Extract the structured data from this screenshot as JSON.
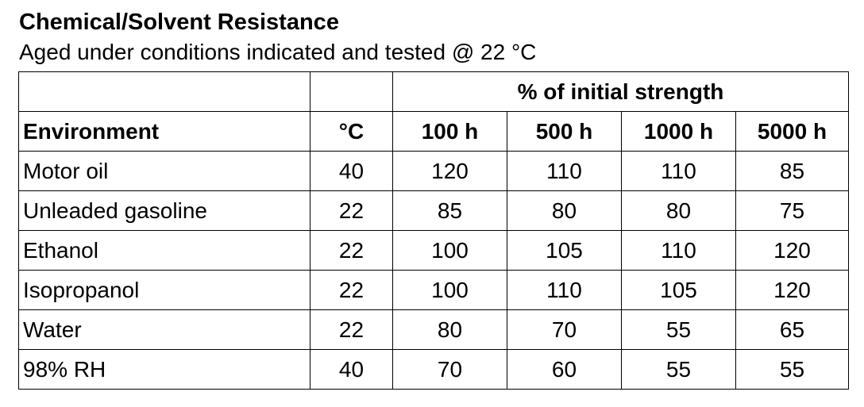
{
  "header": {
    "title": "Chemical/Solvent Resistance",
    "subtitle": "Aged under conditions indicated and tested @ 22 °C"
  },
  "table": {
    "group_header": "% of initial strength",
    "columns": [
      "Environment",
      "°C",
      "100 h",
      "500 h",
      "1000 h",
      "5000 h"
    ],
    "rows": [
      [
        "Motor oil",
        40,
        120,
        110,
        110,
        85
      ],
      [
        "Unleaded gasoline",
        22,
        85,
        80,
        80,
        75
      ],
      [
        "Ethanol",
        22,
        100,
        105,
        110,
        120
      ],
      [
        "Isopropanol",
        22,
        100,
        110,
        105,
        120
      ],
      [
        "Water",
        22,
        80,
        70,
        55,
        65
      ],
      [
        "98% RH",
        40,
        70,
        60,
        55,
        55
      ]
    ]
  }
}
